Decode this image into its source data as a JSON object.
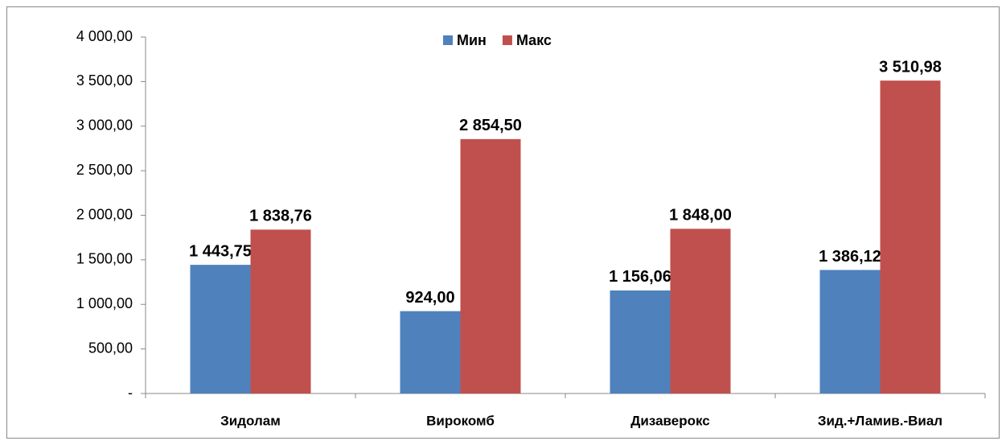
{
  "chart_data": {
    "type": "bar",
    "categories": [
      "Зидолам",
      "Вирокомб",
      "Дизаверокс",
      "Зид.+Ламив.-Виал"
    ],
    "series": [
      {
        "name": "Мин",
        "color": "#4f81bd",
        "values": [
          1443.75,
          924.0,
          1156.06,
          1386.12
        ],
        "value_labels": [
          "1 443,75",
          "924,00",
          "1 156,06",
          "1 386,12"
        ]
      },
      {
        "name": "Макс",
        "color": "#c0504d",
        "values": [
          1838.76,
          2854.5,
          1848.0,
          3510.98
        ],
        "value_labels": [
          "1 838,76",
          "2 854,50",
          "1 848,00",
          "3 510,98"
        ]
      }
    ],
    "ylim": [
      0,
      4000
    ],
    "yticks": [
      {
        "value": 0,
        "label": "-"
      },
      {
        "value": 500,
        "label": "500,00"
      },
      {
        "value": 1000,
        "label": "1 000,00"
      },
      {
        "value": 1500,
        "label": "1 500,00"
      },
      {
        "value": 2000,
        "label": "2 000,00"
      },
      {
        "value": 2500,
        "label": "2 500,00"
      },
      {
        "value": 3000,
        "label": "3 000,00"
      },
      {
        "value": 3500,
        "label": "3 500,00"
      },
      {
        "value": 4000,
        "label": "4 000,00"
      }
    ],
    "grid": false,
    "legend": "top"
  }
}
